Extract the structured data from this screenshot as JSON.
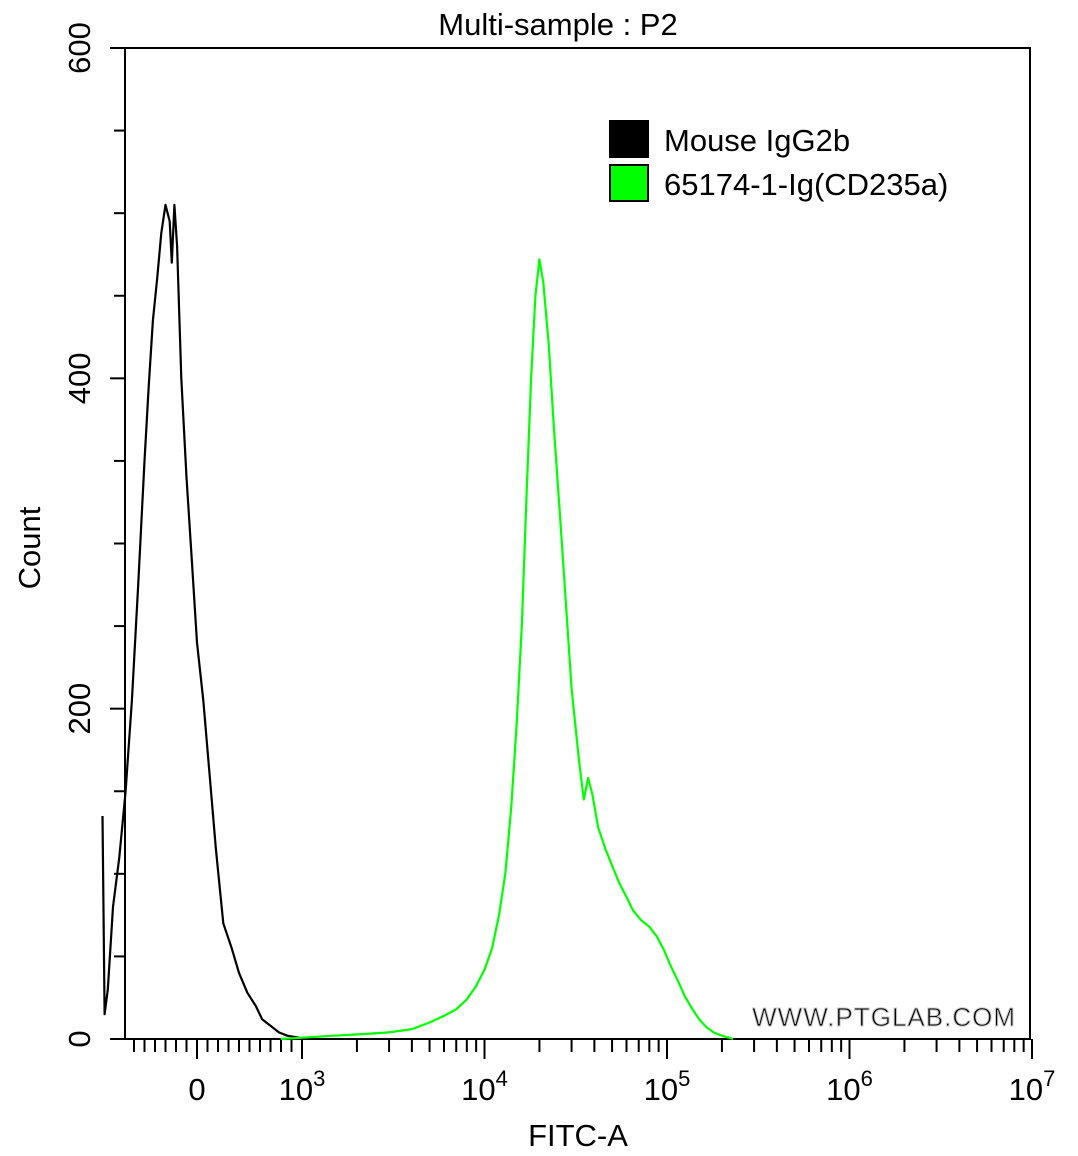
{
  "chart_data": {
    "type": "line",
    "title": "Multi-sample : P2",
    "xlabel": "FITC-A",
    "ylabel": "Count",
    "xscale": "biexponential (linear near 0, log above 10^3)",
    "ylim": [
      0,
      600
    ],
    "grid": false,
    "legend_position": "top-right",
    "y_ticks": [
      "0",
      "200",
      "400",
      "600"
    ],
    "x_ticks": [
      {
        "value": 0,
        "label": "0",
        "exp": ""
      },
      {
        "value": 1000,
        "label": "10",
        "exp": "3"
      },
      {
        "value": 10000,
        "label": "10",
        "exp": "4"
      },
      {
        "value": 100000,
        "label": "10",
        "exp": "5"
      },
      {
        "value": 1000000,
        "label": "10",
        "exp": "6"
      },
      {
        "value": 10000000,
        "label": "10",
        "exp": "7"
      }
    ],
    "series": [
      {
        "name": "Mouse IgG2b",
        "color": "#000000",
        "points": [
          [
            -900,
            135
          ],
          [
            -880,
            15
          ],
          [
            -850,
            30
          ],
          [
            -800,
            80
          ],
          [
            -740,
            110
          ],
          [
            -680,
            150
          ],
          [
            -620,
            205
          ],
          [
            -560,
            275
          ],
          [
            -500,
            350
          ],
          [
            -460,
            395
          ],
          [
            -420,
            435
          ],
          [
            -380,
            460
          ],
          [
            -340,
            488
          ],
          [
            -300,
            505
          ],
          [
            -260,
            495
          ],
          [
            -240,
            470
          ],
          [
            -215,
            505
          ],
          [
            -190,
            480
          ],
          [
            -150,
            400
          ],
          [
            -100,
            340
          ],
          [
            -50,
            290
          ],
          [
            0,
            240
          ],
          [
            60,
            205
          ],
          [
            120,
            160
          ],
          [
            180,
            115
          ],
          [
            250,
            70
          ],
          [
            330,
            55
          ],
          [
            400,
            40
          ],
          [
            480,
            28
          ],
          [
            560,
            20
          ],
          [
            620,
            12
          ],
          [
            700,
            8
          ],
          [
            780,
            4
          ],
          [
            860,
            2
          ],
          [
            950,
            1
          ],
          [
            1050,
            0
          ]
        ]
      },
      {
        "name": "65174-1-Ig(CD235a)",
        "color": "#00ff00",
        "points": [
          [
            800,
            0
          ],
          [
            1500,
            2
          ],
          [
            2200,
            3
          ],
          [
            3000,
            4
          ],
          [
            4000,
            6
          ],
          [
            5000,
            10
          ],
          [
            6000,
            14
          ],
          [
            7000,
            18
          ],
          [
            8000,
            24
          ],
          [
            9000,
            32
          ],
          [
            10000,
            42
          ],
          [
            11000,
            55
          ],
          [
            12000,
            75
          ],
          [
            13000,
            100
          ],
          [
            14000,
            140
          ],
          [
            15000,
            190
          ],
          [
            16000,
            250
          ],
          [
            17000,
            330
          ],
          [
            18000,
            400
          ],
          [
            19000,
            450
          ],
          [
            20000,
            472
          ],
          [
            21000,
            458
          ],
          [
            22500,
            420
          ],
          [
            24000,
            370
          ],
          [
            26000,
            315
          ],
          [
            28000,
            262
          ],
          [
            30000,
            212
          ],
          [
            33000,
            168
          ],
          [
            35000,
            145
          ],
          [
            37000,
            158
          ],
          [
            39000,
            148
          ],
          [
            42000,
            128
          ],
          [
            46000,
            115
          ],
          [
            50000,
            105
          ],
          [
            55000,
            94
          ],
          [
            60000,
            86
          ],
          [
            65000,
            78
          ],
          [
            72000,
            72
          ],
          [
            80000,
            68
          ],
          [
            88000,
            62
          ],
          [
            96000,
            54
          ],
          [
            105000,
            44
          ],
          [
            115000,
            35
          ],
          [
            125000,
            26
          ],
          [
            138000,
            18
          ],
          [
            150000,
            12
          ],
          [
            165000,
            7
          ],
          [
            180000,
            4
          ],
          [
            200000,
            2
          ],
          [
            230000,
            0
          ]
        ]
      }
    ]
  },
  "watermark": "WWW.PTGLAB.COM"
}
